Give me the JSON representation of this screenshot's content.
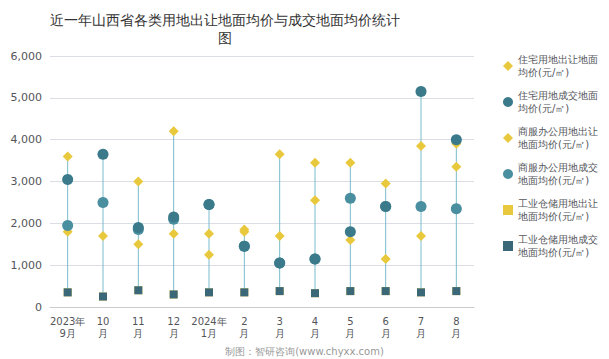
{
  "chart_data": {
    "type": "scatter",
    "title": "近一年山西省各类用地出让地面均价与成交地面均价统计\n图",
    "annotations": [
      "制图：智研咨询(www.chyxx.com)"
    ],
    "categories": [
      "2023年\n9月",
      "10\n月",
      "11\n月",
      "12\n月",
      "2024年\n1月",
      "2\n月",
      "3\n月",
      "4\n月",
      "5\n月",
      "6\n月",
      "7\n月",
      "8\n月"
    ],
    "color": "#7ABCCC",
    "series": [
      {
        "name": "住宅用地出让地面\n均价(元/㎡)",
        "color": "#E8C83C",
        "marker": "diamond",
        "values": [
          3600,
          3650,
          3000,
          4200,
          1750,
          1850,
          3650,
          3450,
          3450,
          2950,
          3850,
          3900
        ]
      },
      {
        "name": "住宅用地成交地面\n均价(元/㎡)",
        "color": "#3A7A8A",
        "marker": "circle",
        "values": [
          3050,
          3650,
          1900,
          2150,
          2450,
          1450,
          1050,
          1150,
          1800,
          2400,
          5150,
          4000
        ]
      },
      {
        "name": "商服办公用地出让\n地面均价(元/㎡)",
        "color": "#E8C83C",
        "marker": "diamond",
        "values": [
          1800,
          1700,
          1500,
          1750,
          1250,
          1800,
          1700,
          2550,
          1600,
          1150,
          1700,
          3350
        ]
      },
      {
        "name": "商服办公用地成交\n地面均价(元/㎡)",
        "color": "#4A8FA0",
        "marker": "circle",
        "values": [
          1950,
          2500,
          1850,
          2100,
          2450,
          1450,
          1050,
          1150,
          2600,
          2400,
          2400,
          2350
        ]
      },
      {
        "name": "工业仓储用地出让\n地面均价(元/㎡)",
        "color": "#E8C83C",
        "marker": "square",
        "values": [
          350,
          250,
          400,
          300,
          350,
          350,
          380,
          330,
          380,
          380,
          350,
          380
        ]
      },
      {
        "name": "工业仓储用地成交\n地面均价(元/㎡)",
        "color": "#3A6878",
        "marker": "square",
        "values": [
          350,
          250,
          400,
          300,
          350,
          350,
          380,
          330,
          380,
          380,
          350,
          380
        ]
      }
    ],
    "ylim": [
      0,
      6000
    ],
    "yticks": [
      0,
      1000,
      2000,
      3000,
      4000,
      5000,
      6000
    ],
    "grid": true
  }
}
